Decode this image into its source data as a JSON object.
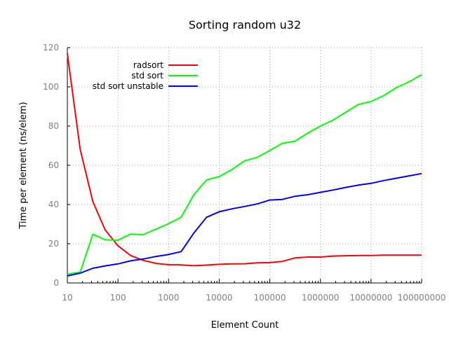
{
  "chart_data": {
    "type": "line",
    "title": "Sorting random u32",
    "xlabel": "Element Count",
    "ylabel": "Time per element (ns/elem)",
    "xscale": "log",
    "xlim": [
      10,
      100000000
    ],
    "ylim": [
      0,
      120
    ],
    "x_tick_labels": [
      "10",
      "100",
      "1000",
      "10000",
      "100000",
      "1000000",
      "10000000",
      "100000000"
    ],
    "x_ticks": [
      10,
      100,
      1000,
      10000,
      100000,
      1000000,
      10000000,
      100000000
    ],
    "y_tick_labels": [
      "0",
      "20",
      "40",
      "60",
      "80",
      "100",
      "120"
    ],
    "y_ticks": [
      0,
      20,
      40,
      60,
      80,
      100,
      120
    ],
    "grid": true,
    "legend_position": "top-left",
    "x": [
      10,
      18,
      32,
      56,
      100,
      178,
      316,
      562,
      1000,
      1778,
      3162,
      5623,
      10000,
      17783,
      31623,
      56234,
      100000,
      177828,
      316228,
      562341,
      1000000,
      1778279,
      3162278,
      5623413,
      10000000,
      17782794,
      31622777,
      56234133,
      100000000
    ],
    "series": [
      {
        "name": "radsort",
        "color": "#ff0000",
        "values": [
          117,
          68,
          41.5,
          27,
          19,
          14,
          11.5,
          10,
          9.3,
          9.2,
          8.8,
          9.1,
          9.5,
          9.7,
          9.8,
          10.3,
          10.4,
          11,
          12.8,
          13.2,
          13.2,
          13.7,
          13.9,
          14,
          14,
          14.2,
          14.2,
          14.2,
          14.2
        ]
      },
      {
        "name": "std sort",
        "color": "#00ff00",
        "values": [
          4.5,
          5.5,
          24.8,
          22,
          21.8,
          24.9,
          24.6,
          27.4,
          30.2,
          33.5,
          45,
          52.5,
          54.2,
          57.8,
          62.2,
          64,
          67.5,
          71.2,
          72.3,
          76.4,
          80,
          83,
          87,
          91,
          92.5,
          95.5,
          99.5,
          102.5,
          106.2
        ]
      },
      {
        "name": "std sort unstable",
        "color": "#0000ff",
        "values": [
          3.6,
          5,
          7.5,
          8.7,
          9.7,
          11.3,
          12.2,
          13.5,
          14.5,
          16,
          25.5,
          33.5,
          36.3,
          37.8,
          39,
          40.3,
          42.3,
          42.6,
          44.2,
          45,
          46.2,
          47.4,
          48.7,
          49.9,
          50.8,
          52.2,
          53.4,
          54.6,
          55.8
        ]
      }
    ]
  }
}
